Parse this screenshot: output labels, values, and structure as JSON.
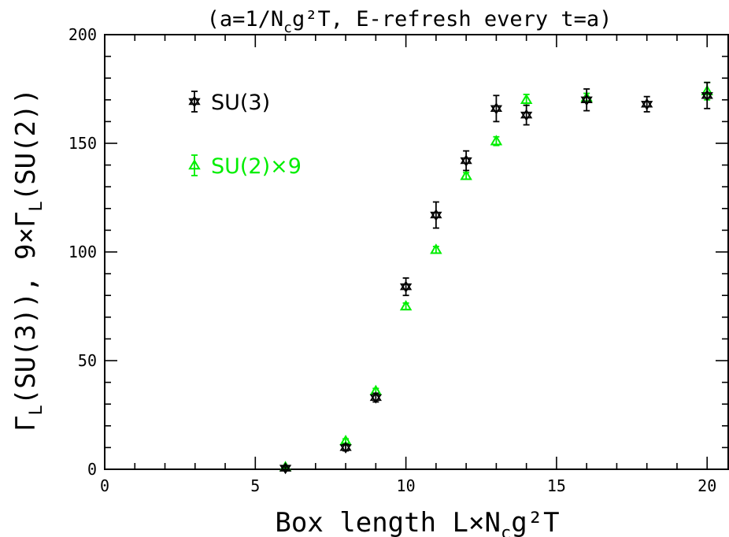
{
  "chart_data": {
    "type": "scatter",
    "title": "(a=1/N_cg²T,  E-refresh every t=a)",
    "xlabel": "Box length L×N_cg²T",
    "ylabel": "Γ_L(SU(3)),  9×Γ_L(SU(2))",
    "xlim": [
      0,
      20.7
    ],
    "ylim": [
      0,
      200
    ],
    "x_ticks": [
      0,
      5,
      10,
      15,
      20
    ],
    "y_ticks": [
      0,
      50,
      100,
      150,
      200
    ],
    "grid": false,
    "legend_position": "top-left",
    "series": [
      {
        "name": "SU(3)",
        "color": "#000000",
        "marker": "star",
        "x": [
          6,
          8,
          9,
          10,
          11,
          12,
          13,
          14,
          16,
          18,
          20
        ],
        "y": [
          0.5,
          10,
          33,
          84,
          117,
          142,
          166,
          163,
          170,
          168,
          172
        ],
        "err": [
          0.5,
          1.5,
          2,
          4,
          6,
          4.5,
          6,
          4.5,
          5,
          3.5,
          6
        ]
      },
      {
        "name": "SU(2)×9",
        "color": "#00ee00",
        "marker": "triangle",
        "x": [
          6,
          8,
          9,
          10,
          11,
          12,
          13,
          14,
          16,
          20
        ],
        "y": [
          1,
          13,
          36,
          75,
          101,
          135,
          151,
          170,
          171,
          174
        ],
        "err": [
          0.4,
          1,
          1.2,
          1.5,
          1.5,
          1.5,
          2,
          2.5,
          2,
          4
        ]
      }
    ]
  }
}
